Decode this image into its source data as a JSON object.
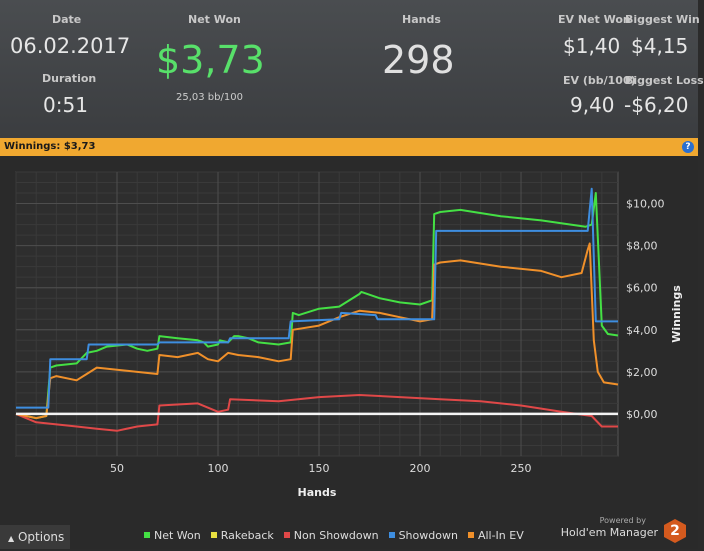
{
  "summary": {
    "date_label": "Date",
    "date": "06.02.2017",
    "duration_label": "Duration",
    "duration": "0:51",
    "net_won_label": "Net Won",
    "net_won": "$3,73",
    "bb100": "25,03 bb/100",
    "hands_label": "Hands",
    "hands": "298",
    "ev_net_won_label": "EV Net Won",
    "ev_net_won": "$1,40",
    "biggest_win_label": "Biggest Win",
    "biggest_win": "$4,15",
    "ev_bb100_label": "EV (bb/100)",
    "ev_bb100": "9,40",
    "biggest_loss_label": "Biggest Loss",
    "biggest_loss": "-$6,20"
  },
  "bar": {
    "winnings_label": "Winnings:",
    "winnings_value": "$3,73",
    "help": "?"
  },
  "options_label": "Options",
  "brand": {
    "powered_by": "Powered by",
    "name": "Hold'em Manager",
    "logo_text": "2"
  },
  "chart_data": {
    "type": "line",
    "xlabel": "Hands",
    "ylabel": "Winnings",
    "xlim": [
      0,
      298
    ],
    "ylim": [
      -2,
      11.5
    ],
    "x_ticks": [
      50,
      100,
      150,
      200,
      250
    ],
    "y_ticks": [
      0,
      2,
      4,
      6,
      8,
      10
    ],
    "y_tick_labels": [
      "$0,00",
      "$2,00",
      "$4,00",
      "$6,00",
      "$8,00",
      "$10,00"
    ],
    "legend_position": "bottom",
    "series": [
      {
        "name": "Net Won",
        "color": "#44e044",
        "x": [
          0,
          5,
          10,
          15,
          17,
          20,
          30,
          35,
          40,
          45,
          55,
          60,
          65,
          70,
          71,
          80,
          90,
          93,
          95,
          100,
          101,
          105,
          108,
          110,
          115,
          120,
          130,
          136,
          137,
          140,
          150,
          160,
          170,
          171,
          180,
          190,
          200,
          206,
          207,
          210,
          220,
          240,
          260,
          282,
          285,
          287,
          290,
          293,
          298
        ],
        "y": [
          0,
          -0.1,
          -0.2,
          -0.1,
          2.2,
          2.3,
          2.4,
          2.9,
          3.0,
          3.2,
          3.3,
          3.1,
          3.0,
          3.1,
          3.7,
          3.6,
          3.5,
          3.4,
          3.2,
          3.3,
          3.5,
          3.4,
          3.7,
          3.7,
          3.6,
          3.4,
          3.3,
          3.4,
          4.8,
          4.7,
          5.0,
          5.1,
          5.7,
          5.8,
          5.5,
          5.3,
          5.2,
          5.4,
          9.5,
          9.6,
          9.7,
          9.4,
          9.2,
          8.9,
          9.0,
          10.5,
          4.2,
          3.8,
          3.73
        ]
      },
      {
        "name": "Rakeback",
        "color": "#e8e040",
        "x": [
          0,
          298
        ],
        "y": [
          0,
          0
        ]
      },
      {
        "name": "Non Showdown",
        "color": "#e04848",
        "x": [
          0,
          10,
          20,
          30,
          40,
          50,
          60,
          70,
          71,
          90,
          100,
          105,
          106,
          130,
          150,
          170,
          190,
          210,
          230,
          250,
          270,
          285,
          290,
          298
        ],
        "y": [
          0,
          -0.4,
          -0.5,
          -0.6,
          -0.7,
          -0.8,
          -0.6,
          -0.5,
          0.4,
          0.5,
          0.1,
          0.2,
          0.7,
          0.6,
          0.8,
          0.9,
          0.8,
          0.7,
          0.6,
          0.4,
          0.1,
          -0.1,
          -0.6,
          -0.6
        ]
      },
      {
        "name": "Showdown",
        "color": "#3e8ee0",
        "x": [
          0,
          10,
          16,
          17,
          35,
          36,
          70,
          71,
          105,
          106,
          135,
          136,
          160,
          161,
          178,
          179,
          207,
          208,
          283,
          285,
          287,
          289,
          298
        ],
        "y": [
          0.3,
          0.3,
          0.3,
          2.6,
          2.6,
          3.3,
          3.3,
          3.4,
          3.4,
          3.6,
          3.6,
          4.4,
          4.5,
          4.8,
          4.7,
          4.5,
          4.5,
          8.7,
          8.7,
          10.7,
          4.4,
          4.4,
          4.4
        ]
      },
      {
        "name": "All-In EV",
        "color": "#f0902a",
        "x": [
          0,
          5,
          10,
          15,
          17,
          20,
          30,
          35,
          40,
          50,
          60,
          70,
          71,
          80,
          90,
          95,
          100,
          105,
          110,
          120,
          130,
          136,
          137,
          150,
          160,
          170,
          180,
          190,
          200,
          206,
          207,
          210,
          220,
          240,
          260,
          270,
          280,
          283,
          284,
          286,
          288,
          291,
          298
        ],
        "y": [
          0,
          -0.1,
          -0.2,
          -0.1,
          1.7,
          1.8,
          1.6,
          1.9,
          2.2,
          2.1,
          2.0,
          1.9,
          2.8,
          2.7,
          2.9,
          2.6,
          2.5,
          2.9,
          2.8,
          2.7,
          2.5,
          2.6,
          4.0,
          4.2,
          4.6,
          4.9,
          4.8,
          4.6,
          4.4,
          4.5,
          7.1,
          7.2,
          7.3,
          7.0,
          6.8,
          6.5,
          6.7,
          7.8,
          8.1,
          3.5,
          2.0,
          1.5,
          1.4
        ]
      }
    ]
  }
}
